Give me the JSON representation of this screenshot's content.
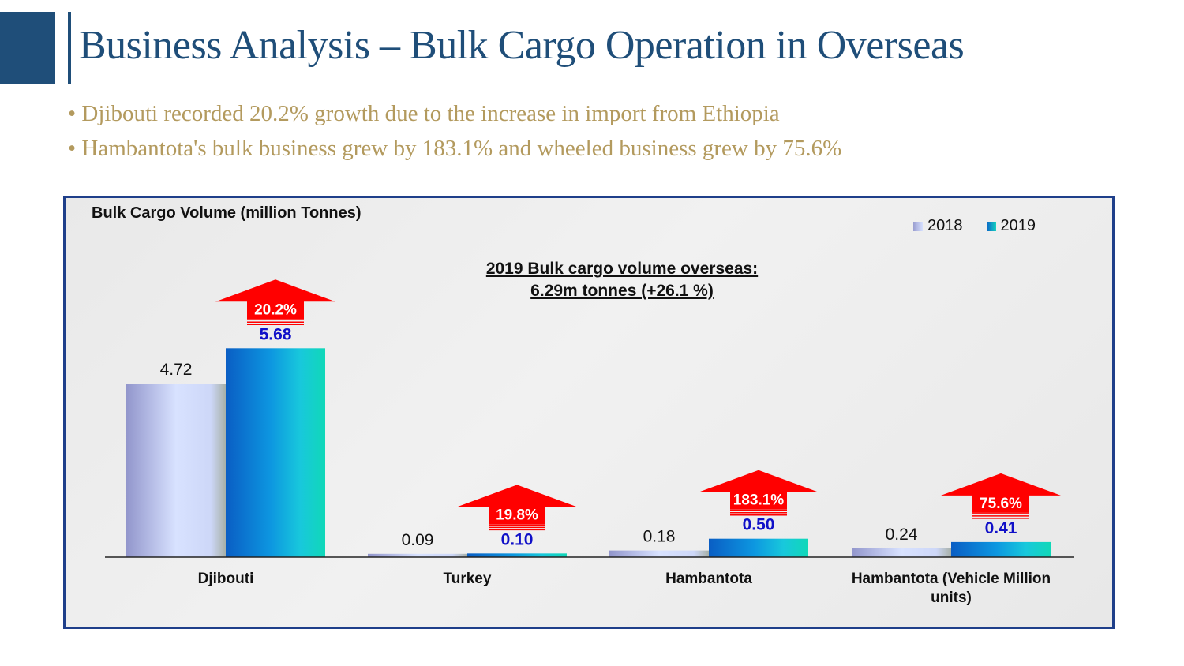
{
  "slide": {
    "title": "Business Analysis – Bulk Cargo Operation in Overseas",
    "bullets": [
      "• Djibouti recorded 20.2% growth due to the increase in import from Ethiopia",
      "• Hambantota's bulk business grew by 183.1% and wheeled business grew by 75.6%"
    ],
    "colors": {
      "title": "#1f4e79",
      "bullets": "#b39a5e",
      "frame": "#1f3f8a",
      "growth_arrow": "#ff0000"
    }
  },
  "chart_data": {
    "type": "bar",
    "title": "Bulk Cargo Volume (million Tonnes)",
    "categories": [
      "Djibouti",
      "Turkey",
      "Hambantota",
      "Hambantota (Vehicle Million units)"
    ],
    "series": [
      {
        "name": "2018",
        "values": [
          4.72,
          0.09,
          0.18,
          0.24
        ],
        "labels": [
          "4.72",
          "0.09",
          "0.18",
          "0.24"
        ],
        "color": "#b8bde8",
        "label_color": "#111111"
      },
      {
        "name": "2019",
        "values": [
          5.68,
          0.1,
          0.5,
          0.41
        ],
        "labels": [
          "5.68",
          "0.10",
          "0.50",
          "0.41"
        ],
        "color": "#0c8fd6",
        "label_color": "#1010c8"
      }
    ],
    "growth_labels": [
      "20.2%",
      "19.8%",
      "183.1%",
      "75.6%"
    ],
    "annotation": [
      "2019 Bulk cargo volume overseas:",
      "6.29m tonnes (+26.1 %)"
    ],
    "legend_position": "top-right",
    "grid": false,
    "ylim": [
      0,
      7
    ]
  }
}
